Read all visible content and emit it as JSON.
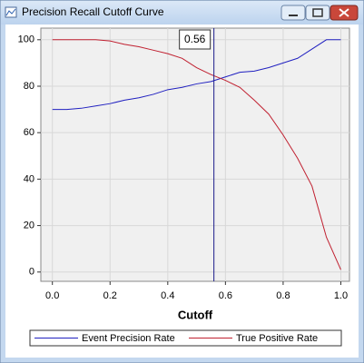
{
  "chart_data": {
    "type": "line",
    "title": "Precision Recall Cutoff Curve",
    "x_label": "Cutoff",
    "x": [
      0,
      0.05,
      0.1,
      0.15,
      0.2,
      0.25,
      0.3,
      0.35,
      0.4,
      0.45,
      0.5,
      0.55,
      0.6,
      0.65,
      0.7,
      0.75,
      0.8,
      0.85,
      0.9,
      0.95,
      1.0
    ],
    "series": [
      {
        "name": "Event Precision Rate",
        "color": "#2020c0",
        "values": [
          70,
          70,
          70.5,
          71.5,
          72.5,
          74,
          75,
          76.5,
          78.5,
          79.5,
          81,
          82,
          84,
          86,
          86.5,
          88,
          90,
          92,
          96,
          100,
          100
        ]
      },
      {
        "name": "True Positive Rate",
        "color": "#c02030",
        "values": [
          100,
          100,
          100,
          100,
          99.5,
          98,
          97,
          95.5,
          94,
          92,
          88,
          85,
          82.5,
          79.5,
          74,
          68,
          59,
          49,
          37,
          15,
          1
        ]
      }
    ],
    "cutoff": 0.56,
    "xlim": [
      -0.04,
      1.03
    ],
    "ylim": [
      -4,
      105
    ],
    "xticks": [
      {
        "value": 0,
        "label": "0.0"
      },
      0.2,
      0.4,
      0.6,
      0.8,
      {
        "value": 1,
        "label": "1.0"
      }
    ],
    "yticks": [
      0,
      20,
      40,
      60,
      80,
      100
    ],
    "grid": true
  }
}
